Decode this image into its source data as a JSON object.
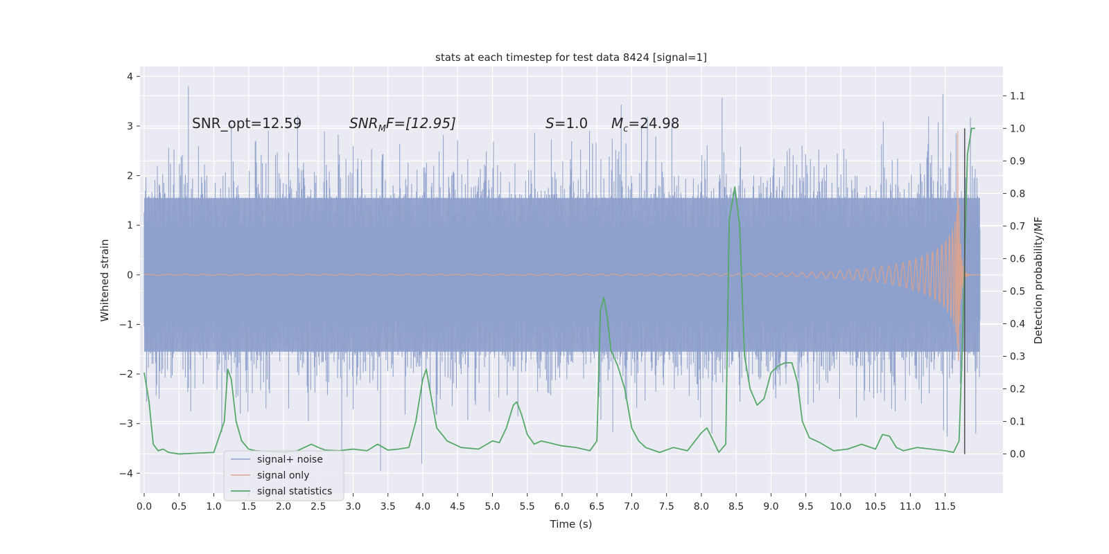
{
  "chart_data": {
    "type": "line",
    "title": "stats at each timestep for test data 8424 [signal=1]",
    "xlabel": "Time (s)",
    "ylabel": "Whitened strain",
    "y2label": "Detection probability/MF",
    "xlim": [
      -0.06,
      12.33
    ],
    "ylim": [
      -4.4,
      4.2
    ],
    "y2lim": [
      -0.12,
      1.19
    ],
    "xticks": [
      0.0,
      0.5,
      1.0,
      1.5,
      2.0,
      2.5,
      3.0,
      3.5,
      4.0,
      4.5,
      5.0,
      5.5,
      6.0,
      6.5,
      7.0,
      7.5,
      8.0,
      8.5,
      9.0,
      9.5,
      10.0,
      10.5,
      11.0,
      11.5
    ],
    "xtick_labels": [
      "0.0",
      "0.5",
      "1.0",
      "1.5",
      "2.0",
      "2.5",
      "3.0",
      "3.5",
      "4.0",
      "4.5",
      "5.0",
      "5.5",
      "6.0",
      "6.5",
      "7.0",
      "7.5",
      "8.0",
      "8.5",
      "9.0",
      "9.5",
      "10.0",
      "10.5",
      "11.0",
      "11.5"
    ],
    "yticks": [
      -4,
      -3,
      -2,
      -1,
      0,
      1,
      2,
      3,
      4
    ],
    "ytick_labels": [
      "−4",
      "−3",
      "−2",
      "−1",
      "0",
      "1",
      "2",
      "3",
      "4"
    ],
    "y2ticks": [
      0.0,
      0.1,
      0.2,
      0.3,
      0.4,
      0.5,
      0.6,
      0.7,
      0.8,
      0.9,
      1.0,
      1.1
    ],
    "y2tick_labels": [
      "0.0",
      "0.1",
      "0.2",
      "0.3",
      "0.4",
      "0.5",
      "0.6",
      "0.7",
      "0.8",
      "0.9",
      "1.0",
      "1.1"
    ],
    "grid": true,
    "legend_position": "lower-left",
    "annotations": {
      "snr_opt": "SNR_opt=12.59",
      "snr_mf_main": "SNR",
      "snr_mf_sub": "M",
      "snr_mf_rest": "F=[12.95]",
      "s_var": "S",
      "s_val": "=1.0",
      "mc_var": "M",
      "mc_sub": "c",
      "mc_val": "=24.98"
    },
    "series": [
      {
        "name": "signal+ noise",
        "color": "#8da0cb",
        "kind": "noise-band",
        "x_range": [
          0.0,
          12.0
        ],
        "typical_abs_peak": 1.8,
        "max": 3.8,
        "min": -3.95
      },
      {
        "name": "signal only",
        "color": "#e1a38b",
        "kind": "chirp",
        "x_range": [
          0.0,
          12.0
        ],
        "merger_time": 11.68,
        "peak_amplitude": 2.9
      },
      {
        "name": "signal statistics",
        "color": "#55a868",
        "kind": "line",
        "axis": "right",
        "x": [
          0.0,
          0.07,
          0.13,
          0.2,
          0.27,
          0.35,
          0.5,
          0.7,
          1.0,
          1.15,
          1.2,
          1.25,
          1.32,
          1.4,
          1.5,
          1.6,
          1.8,
          2.0,
          2.2,
          2.4,
          2.5,
          2.6,
          2.8,
          3.0,
          3.2,
          3.35,
          3.5,
          3.65,
          3.8,
          3.9,
          4.0,
          4.05,
          4.1,
          4.2,
          4.35,
          4.55,
          4.8,
          5.0,
          5.1,
          5.2,
          5.3,
          5.35,
          5.42,
          5.5,
          5.6,
          5.7,
          5.8,
          6.0,
          6.2,
          6.4,
          6.5,
          6.55,
          6.6,
          6.65,
          6.7,
          6.8,
          6.9,
          7.0,
          7.1,
          7.2,
          7.4,
          7.6,
          7.8,
          8.0,
          8.08,
          8.15,
          8.25,
          8.35,
          8.4,
          8.48,
          8.55,
          8.62,
          8.7,
          8.8,
          8.9,
          9.0,
          9.1,
          9.2,
          9.3,
          9.38,
          9.45,
          9.55,
          9.7,
          9.9,
          10.1,
          10.3,
          10.5,
          10.6,
          10.7,
          10.8,
          10.9,
          11.1,
          11.3,
          11.5,
          11.62,
          11.7,
          11.75,
          11.82,
          11.88,
          11.93
        ],
        "y": [
          0.25,
          0.16,
          0.03,
          0.01,
          0.015,
          0.005,
          0.0,
          0.002,
          0.005,
          0.1,
          0.26,
          0.23,
          0.1,
          0.04,
          0.015,
          0.01,
          0.008,
          0.005,
          0.01,
          0.03,
          0.02,
          0.012,
          0.01,
          0.015,
          0.01,
          0.03,
          0.012,
          0.015,
          0.02,
          0.1,
          0.23,
          0.26,
          0.2,
          0.08,
          0.04,
          0.02,
          0.015,
          0.04,
          0.035,
          0.08,
          0.15,
          0.16,
          0.12,
          0.06,
          0.03,
          0.04,
          0.035,
          0.025,
          0.02,
          0.01,
          0.04,
          0.44,
          0.48,
          0.42,
          0.32,
          0.27,
          0.2,
          0.08,
          0.04,
          0.02,
          0.005,
          0.02,
          0.01,
          0.065,
          0.08,
          0.05,
          0.005,
          0.03,
          0.72,
          0.82,
          0.7,
          0.3,
          0.2,
          0.15,
          0.17,
          0.25,
          0.27,
          0.28,
          0.28,
          0.22,
          0.1,
          0.05,
          0.035,
          0.01,
          0.015,
          0.03,
          0.015,
          0.06,
          0.055,
          0.02,
          0.01,
          0.02,
          0.015,
          0.01,
          0.005,
          0.04,
          0.35,
          0.92,
          1.0,
          1.0
        ]
      }
    ],
    "vertical_marker_x": 11.78,
    "vertical_marker_color": "#555555"
  }
}
